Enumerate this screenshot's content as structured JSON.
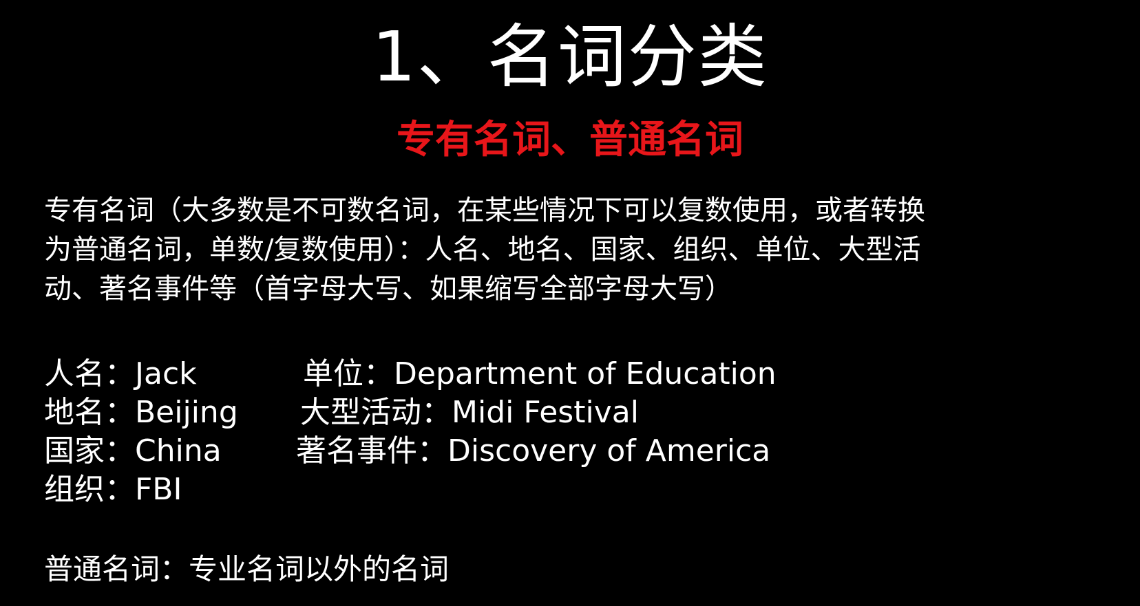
{
  "title": "1、名词分类",
  "subtitle": "专有名词、普通名词",
  "paragraph": {
    "line1": "专有名词（大多数是不可数名词，在某些情况下可以复数使用，或者转换",
    "line2": "为普通名词，单数/复数使用）：人名、地名、国家、组织、单位、大型活",
    "line3": "动、著名事件等（首字母大写、如果缩写全部字母大写）"
  },
  "examples_left": [
    {
      "label": "人名：",
      "value": "Jack"
    },
    {
      "label": "地名：",
      "value": "Beijing"
    },
    {
      "label": "国家：",
      "value": "China"
    },
    {
      "label": "组织：",
      "value": "FBI"
    }
  ],
  "examples_right": [
    {
      "label": "单位：",
      "value": "Department of Education"
    },
    {
      "label": "大型活动：",
      "value": "Midi Festival"
    },
    {
      "label": "著名事件：",
      "value": "Discovery of America"
    }
  ],
  "footer": "普通名词：专业名词以外的名词",
  "colors": {
    "background": "#000000",
    "text": "#ffffff",
    "accent": "#e8161a"
  }
}
